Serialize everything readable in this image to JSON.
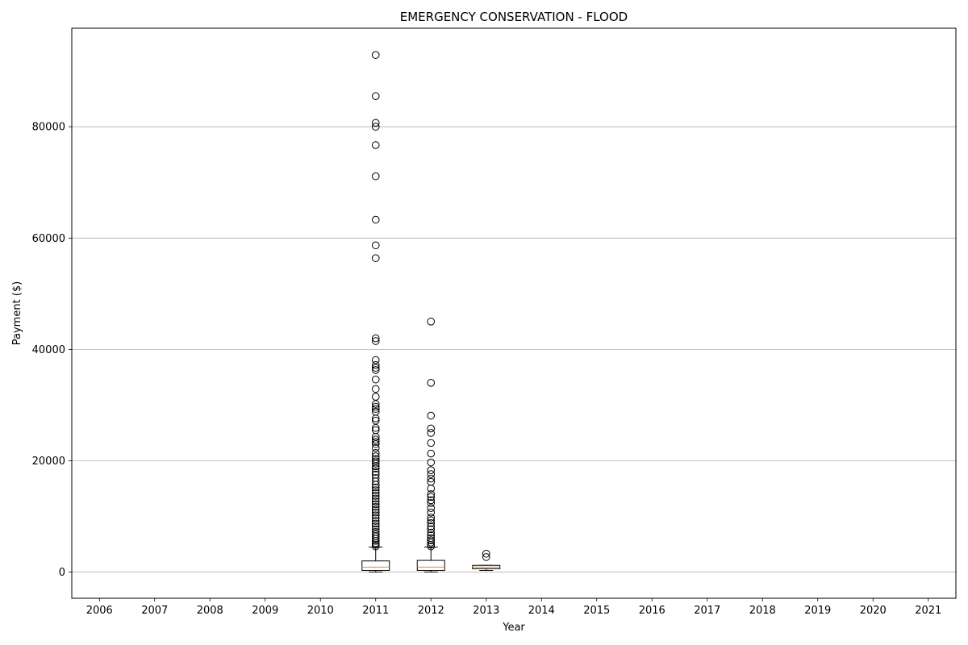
{
  "chart_data": {
    "type": "boxplot",
    "title": "EMERGENCY CONSERVATION - FLOOD",
    "xlabel": "Year",
    "ylabel": "Payment ($)",
    "ylim": [
      -4700,
      97700
    ],
    "yticks": [
      0,
      20000,
      40000,
      60000,
      80000
    ],
    "ytick_labels": [
      "0",
      "20000",
      "40000",
      "60000",
      "80000"
    ],
    "grid": "horizontal",
    "categories": [
      "2006",
      "2007",
      "2008",
      "2009",
      "2010",
      "2011",
      "2012",
      "2013",
      "2014",
      "2015",
      "2016",
      "2017",
      "2018",
      "2019",
      "2020",
      "2021"
    ],
    "boxes": [
      {
        "category": "2011",
        "whisker_low": 0,
        "q1": 300,
        "median": 900,
        "q3": 2000,
        "whisker_high": 4500,
        "outliers": [
          92900,
          85500,
          80700,
          80000,
          76700,
          71100,
          63300,
          58700,
          56400,
          42000,
          41500,
          38100,
          37200,
          36700,
          36300,
          34600,
          32900,
          31500,
          30200,
          29700,
          29300,
          28800,
          27600,
          27200,
          25900,
          25500,
          24300,
          23800,
          23400,
          23000,
          22300,
          21400,
          20800,
          20300,
          19900,
          19500,
          19000,
          18600,
          18000,
          17500,
          16900,
          16300,
          15700,
          15200,
          14700,
          14200,
          13700,
          13200,
          12700,
          12200,
          11700,
          11200,
          10700,
          10200,
          9700,
          9200,
          8700,
          8200,
          7700,
          7200,
          6800,
          6400,
          6000,
          5600,
          5200,
          4900,
          4600
        ]
      },
      {
        "category": "2012",
        "whisker_low": 0,
        "q1": 300,
        "median": 900,
        "q3": 2100,
        "whisker_high": 4500,
        "outliers": [
          45000,
          34000,
          28100,
          25800,
          25000,
          23200,
          21300,
          19700,
          18300,
          17600,
          16800,
          16200,
          15000,
          14000,
          13500,
          12900,
          12400,
          11500,
          10700,
          9800,
          9300,
          8800,
          8200,
          7700,
          7100,
          6600,
          6100,
          5700,
          5300,
          4900,
          4600
        ]
      },
      {
        "category": "2013",
        "whisker_low": 300,
        "q1": 600,
        "median": 900,
        "q3": 1200,
        "whisker_high": 1200,
        "outliers": [
          3300,
          2700
        ]
      }
    ]
  }
}
